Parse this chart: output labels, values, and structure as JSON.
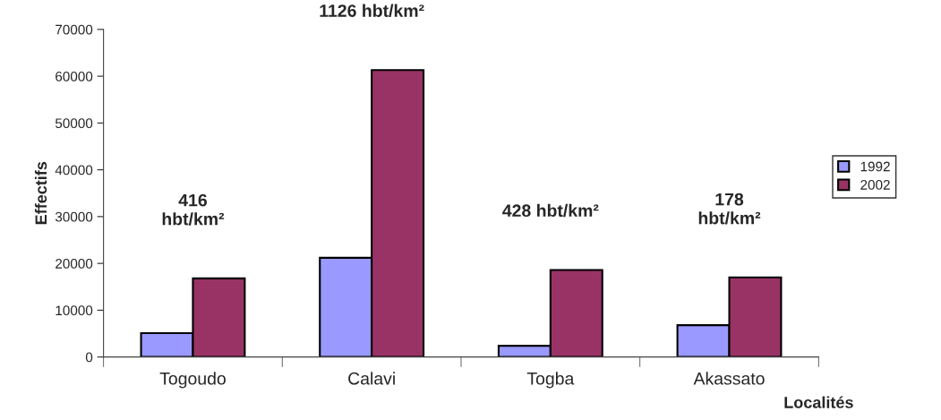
{
  "chart_data": {
    "type": "bar",
    "xlabel": "Localités",
    "ylabel": "Effectifs",
    "categories": [
      "Togoudo",
      "Calavi",
      "Togba",
      "Akassato"
    ],
    "series": [
      {
        "name": "1992",
        "color": "#9999ff",
        "values": [
          5100,
          21200,
          2400,
          6800
        ]
      },
      {
        "name": "2002",
        "color": "#993366",
        "values": [
          16800,
          61300,
          18600,
          17000
        ]
      }
    ],
    "ylim": [
      0,
      70000
    ],
    "yticks": [
      0,
      10000,
      20000,
      30000,
      40000,
      50000,
      60000,
      70000
    ],
    "annotations": [
      "416\nhbt/km²",
      "1126 hbt/km²",
      "428 hbt/km²",
      "178\nhbt/km²"
    ],
    "grid": false,
    "legend": "right"
  }
}
